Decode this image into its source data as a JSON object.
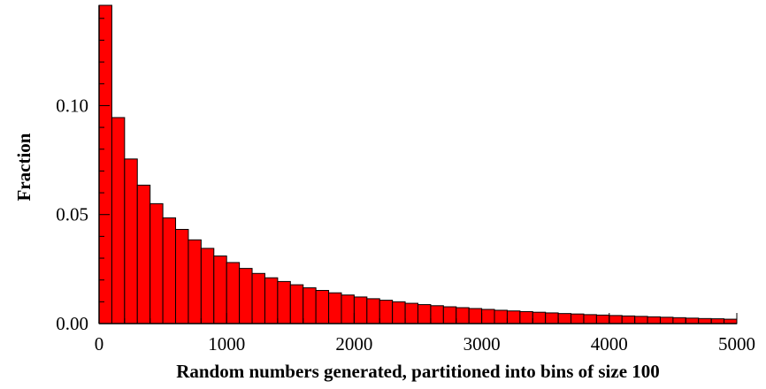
{
  "chart_data": {
    "type": "bar",
    "title": "",
    "xlabel": "Random numbers generated, partitioned into bins of size 100",
    "ylabel": "Fraction",
    "bin_width": 100,
    "xlim": [
      0,
      5000
    ],
    "ylim": [
      0,
      0.146
    ],
    "x_ticks": [
      0,
      1000,
      2000,
      3000,
      4000,
      5000
    ],
    "x_tick_labels": [
      "0",
      "1000",
      "2000",
      "3000",
      "4000",
      "5000"
    ],
    "y_ticks": [
      0,
      0.05,
      0.1
    ],
    "y_tick_labels": [
      "0.00",
      "0.05",
      "0.10"
    ],
    "bin_starts": [
      0,
      100,
      200,
      300,
      400,
      500,
      600,
      700,
      800,
      900,
      1000,
      1100,
      1200,
      1300,
      1400,
      1500,
      1600,
      1700,
      1800,
      1900,
      2000,
      2100,
      2200,
      2300,
      2400,
      2500,
      2600,
      2700,
      2800,
      2900,
      3000,
      3100,
      3200,
      3300,
      3400,
      3500,
      3600,
      3700,
      3800,
      3900,
      4000,
      4100,
      4200,
      4300,
      4400,
      4500,
      4600,
      4700,
      4800,
      4900
    ],
    "values": [
      0.146,
      0.0945,
      0.0755,
      0.0635,
      0.055,
      0.0485,
      0.0432,
      0.0384,
      0.0345,
      0.031,
      0.028,
      0.0253,
      0.023,
      0.021,
      0.0193,
      0.0178,
      0.0164,
      0.0152,
      0.0141,
      0.0131,
      0.0122,
      0.0114,
      0.0107,
      0.01,
      0.0093,
      0.0087,
      0.0082,
      0.0077,
      0.0073,
      0.0069,
      0.0065,
      0.0061,
      0.0058,
      0.0055,
      0.0052,
      0.0049,
      0.0046,
      0.0044,
      0.0041,
      0.0039,
      0.0037,
      0.0035,
      0.0033,
      0.0031,
      0.0029,
      0.0027,
      0.0025,
      0.0023,
      0.0022,
      0.002
    ],
    "bar_color": "#ff0000",
    "bar_edge_color": "#000000",
    "grid": false,
    "legend": "none"
  }
}
